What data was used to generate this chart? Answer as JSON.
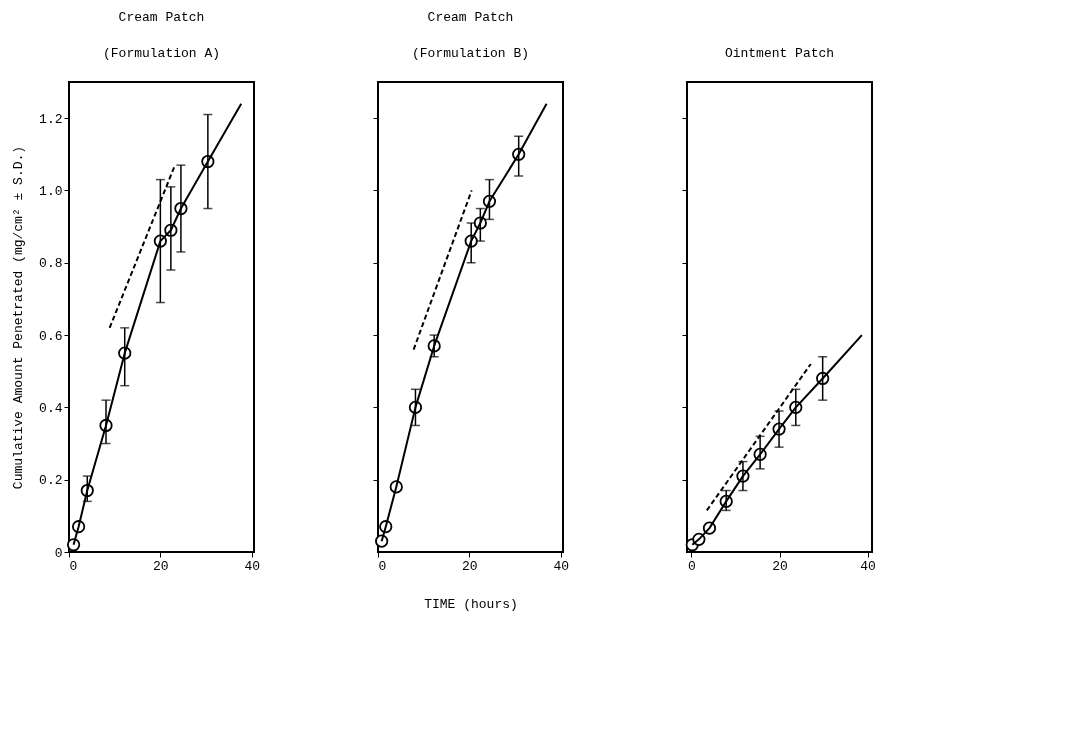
{
  "chart_data": [
    {
      "type": "scatter",
      "title": "Cream Patch\n(Formulation A)",
      "ylabel": "Cumulative Amount Penetrated (mg/cm² ± S.D.)",
      "xlim": [
        0,
        40.5
      ],
      "ylim": [
        0,
        1.3
      ],
      "xticks": [
        0,
        20,
        40
      ],
      "yticks": [
        {
          "value": 0,
          "label": "0"
        },
        0.2,
        0.4,
        0.6,
        0.8,
        {
          "value": 1,
          "label": "1.0"
        },
        1.2
      ],
      "grid": false,
      "legend": false,
      "series": [
        {
          "marker": "circle",
          "color": "#000000",
          "x": [
            1.0,
            2.1,
            4.0,
            8.1,
            12.2,
            20.0,
            22.3,
            24.5,
            30.4
          ],
          "values": [
            0.02,
            0.07,
            0.17,
            0.35,
            0.55,
            0.86,
            0.89,
            0.95,
            1.08
          ],
          "errors": [
            null,
            null,
            [
              0.14,
              0.21
            ],
            [
              0.3,
              0.42
            ],
            [
              0.46,
              0.62
            ],
            [
              0.69,
              1.03
            ],
            [
              0.78,
              1.01
            ],
            [
              0.83,
              1.07
            ],
            [
              0.95,
              1.21
            ]
          ]
        },
        {
          "type": "line",
          "color": "#000000",
          "line_style": "solid",
          "x": [
            1.0,
            2.1,
            4.0,
            8.1,
            12.2,
            20.0,
            22.3,
            24.5,
            30.4,
            37.7
          ],
          "values": [
            0.02,
            0.07,
            0.17,
            0.35,
            0.55,
            0.86,
            0.89,
            0.95,
            1.08,
            1.24
          ]
        },
        {
          "type": "line",
          "color": "#000000",
          "line_style": "dashed",
          "x": [
            8.9,
            23.2
          ],
          "values": [
            0.62,
            1.07
          ]
        }
      ]
    },
    {
      "type": "scatter",
      "title": "Cream Patch\n(Formulation B)",
      "xlabel": "TIME (hours)",
      "xlim": [
        0,
        40.5
      ],
      "ylim": [
        0,
        1.3
      ],
      "xticks": [
        0,
        20,
        40
      ],
      "yticks": [
        {
          "value": 0.2,
          "label": null
        },
        {
          "value": 0.4,
          "label": null
        },
        {
          "value": 0.6,
          "label": null
        },
        {
          "value": 0.8,
          "label": null
        },
        {
          "value": 1,
          "label": null
        },
        {
          "value": 1.2,
          "label": null
        }
      ],
      "tick_labels": "x",
      "grid": false,
      "legend": false,
      "series": [
        {
          "marker": "circle",
          "color": "#000000",
          "x": [
            0.8,
            1.7,
            4.0,
            8.2,
            12.3,
            20.4,
            22.4,
            24.4,
            30.8
          ],
          "values": [
            0.03,
            0.07,
            0.18,
            0.4,
            0.57,
            0.86,
            0.91,
            0.97,
            1.1
          ],
          "errors": [
            null,
            null,
            null,
            [
              0.35,
              0.45
            ],
            [
              0.54,
              0.6
            ],
            [
              0.8,
              0.91
            ],
            [
              0.86,
              0.95
            ],
            [
              0.92,
              1.03
            ],
            [
              1.04,
              1.15
            ]
          ]
        },
        {
          "type": "line",
          "color": "#000000",
          "line_style": "solid",
          "x": [
            0.8,
            1.7,
            4.0,
            8.2,
            12.3,
            20.4,
            22.4,
            24.4,
            30.8,
            36.9
          ],
          "values": [
            0.03,
            0.07,
            0.18,
            0.4,
            0.57,
            0.86,
            0.91,
            0.97,
            1.1,
            1.24
          ]
        },
        {
          "type": "line",
          "color": "#000000",
          "line_style": "dashed",
          "x": [
            7.8,
            20.5
          ],
          "values": [
            0.56,
            1.0
          ]
        }
      ]
    },
    {
      "type": "scatter",
      "title": "Ointment Patch",
      "xlim": [
        -1,
        41
      ],
      "ylim": [
        0,
        1.3
      ],
      "xticks": [
        0,
        20,
        40
      ],
      "yticks": [
        {
          "value": 0.2,
          "label": null
        },
        {
          "value": 0.4,
          "label": null
        },
        {
          "value": 0.6,
          "label": null
        },
        {
          "value": 0.8,
          "label": null
        },
        {
          "value": 1,
          "label": null
        },
        {
          "value": 1.2,
          "label": null
        }
      ],
      "tick_labels": "x",
      "grid": false,
      "legend": false,
      "series": [
        {
          "marker": "circle",
          "color": "#000000",
          "x": [
            0.2,
            1.7,
            4.1,
            7.9,
            11.7,
            15.6,
            19.9,
            23.7,
            29.8
          ],
          "values": [
            0.02,
            0.035,
            0.066,
            0.14,
            0.21,
            0.27,
            0.34,
            0.4,
            0.48
          ],
          "errors": [
            null,
            null,
            null,
            [
              0.115,
              0.17
            ],
            [
              0.17,
              0.25
            ],
            [
              0.23,
              0.32
            ],
            [
              0.29,
              0.39
            ],
            [
              0.35,
              0.45
            ],
            [
              0.42,
              0.54
            ]
          ]
        },
        {
          "type": "line",
          "color": "#000000",
          "line_style": "solid",
          "x": [
            0.2,
            1.7,
            4.1,
            7.9,
            11.7,
            15.6,
            19.9,
            23.7,
            29.8,
            38.7
          ],
          "values": [
            0.02,
            0.035,
            0.066,
            0.14,
            0.21,
            0.27,
            0.34,
            0.4,
            0.48,
            0.6
          ]
        },
        {
          "type": "line",
          "color": "#000000",
          "line_style": "dashed",
          "x": [
            3.5,
            27.1
          ],
          "values": [
            0.115,
            0.52
          ]
        }
      ]
    }
  ]
}
